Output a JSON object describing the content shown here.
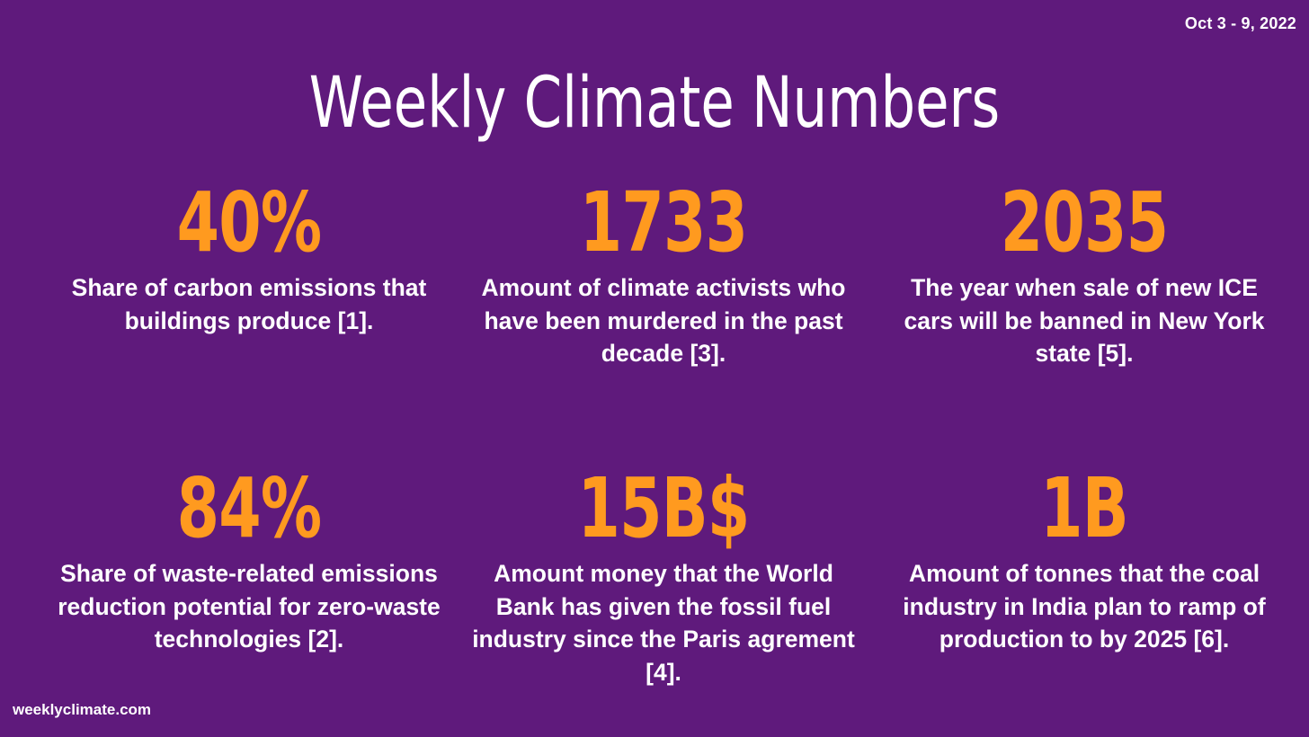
{
  "header": {
    "date_range": "Oct 3 - 9, 2022",
    "title": "Weekly Climate Numbers"
  },
  "stats": [
    {
      "number": "40%",
      "description": "Share of carbon emissions that buildings produce [1]."
    },
    {
      "number": "1733",
      "description": "Amount of climate activists who have been murdered in the past decade [3]."
    },
    {
      "number": "2035",
      "description": "The year when sale of new ICE cars will be banned in New York state [5]."
    },
    {
      "number": "84%",
      "description": "Share of waste-related emissions reduction potential for zero-waste technologies [2]."
    },
    {
      "number": "15B$",
      "description": "Amount money that the World Bank has given the fossil fuel industry since the Paris agrement [4]."
    },
    {
      "number": "1B",
      "description": "Amount of tonnes that the coal industry in India plan to ramp of production to by 2025 [6]."
    }
  ],
  "footer": {
    "site": "weeklyclimate.com"
  },
  "colors": {
    "background": "#5f1a7c",
    "accent": "#ff9a1f",
    "text": "#ffffff"
  }
}
